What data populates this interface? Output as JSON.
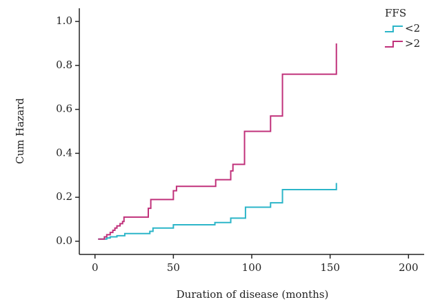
{
  "chart_data": {
    "type": "step",
    "xlabel": "Duration of disease (months)",
    "ylabel": "Cum Hazard",
    "legend_title": "FFS",
    "legend_position": "upper right",
    "xlim": [
      -10,
      210
    ],
    "ylim": [
      -0.06,
      1.06
    ],
    "xticks": [
      0,
      50,
      100,
      150,
      200
    ],
    "yticks": [
      {
        "value": 0,
        "label": "0.0"
      },
      {
        "value": 0.2,
        "label": "0.2"
      },
      {
        "value": 0.4,
        "label": "0.4"
      },
      {
        "value": 0.6,
        "label": "0.6"
      },
      {
        "value": 0.8,
        "label": "0.8"
      },
      {
        "value": 1,
        "label": "1.0"
      }
    ],
    "series": [
      {
        "name": "<2",
        "color": "#2bb5c8",
        "x": [
          2,
          7.5,
          9.7,
          14,
          19,
          35,
          37,
          50,
          76.5,
          86.6,
          96,
          112,
          119.6,
          154
        ],
        "values": [
          0.01,
          0.015,
          0.02,
          0.025,
          0.035,
          0.045,
          0.06,
          0.075,
          0.085,
          0.105,
          0.155,
          0.175,
          0.235,
          0.265
        ]
      },
      {
        "name": ">2",
        "color": "#c0307a",
        "x": [
          2,
          6,
          7.5,
          9.7,
          11.4,
          12.7,
          14,
          16,
          17.6,
          18.5,
          34,
          35.6,
          50,
          52,
          77,
          86.6,
          88,
          95.4,
          112,
          119.6,
          154
        ],
        "values": [
          0.01,
          0.02,
          0.03,
          0.04,
          0.05,
          0.06,
          0.07,
          0.08,
          0.09,
          0.11,
          0.15,
          0.19,
          0.23,
          0.25,
          0.28,
          0.32,
          0.35,
          0.5,
          0.57,
          0.76,
          0.9
        ]
      }
    ]
  }
}
